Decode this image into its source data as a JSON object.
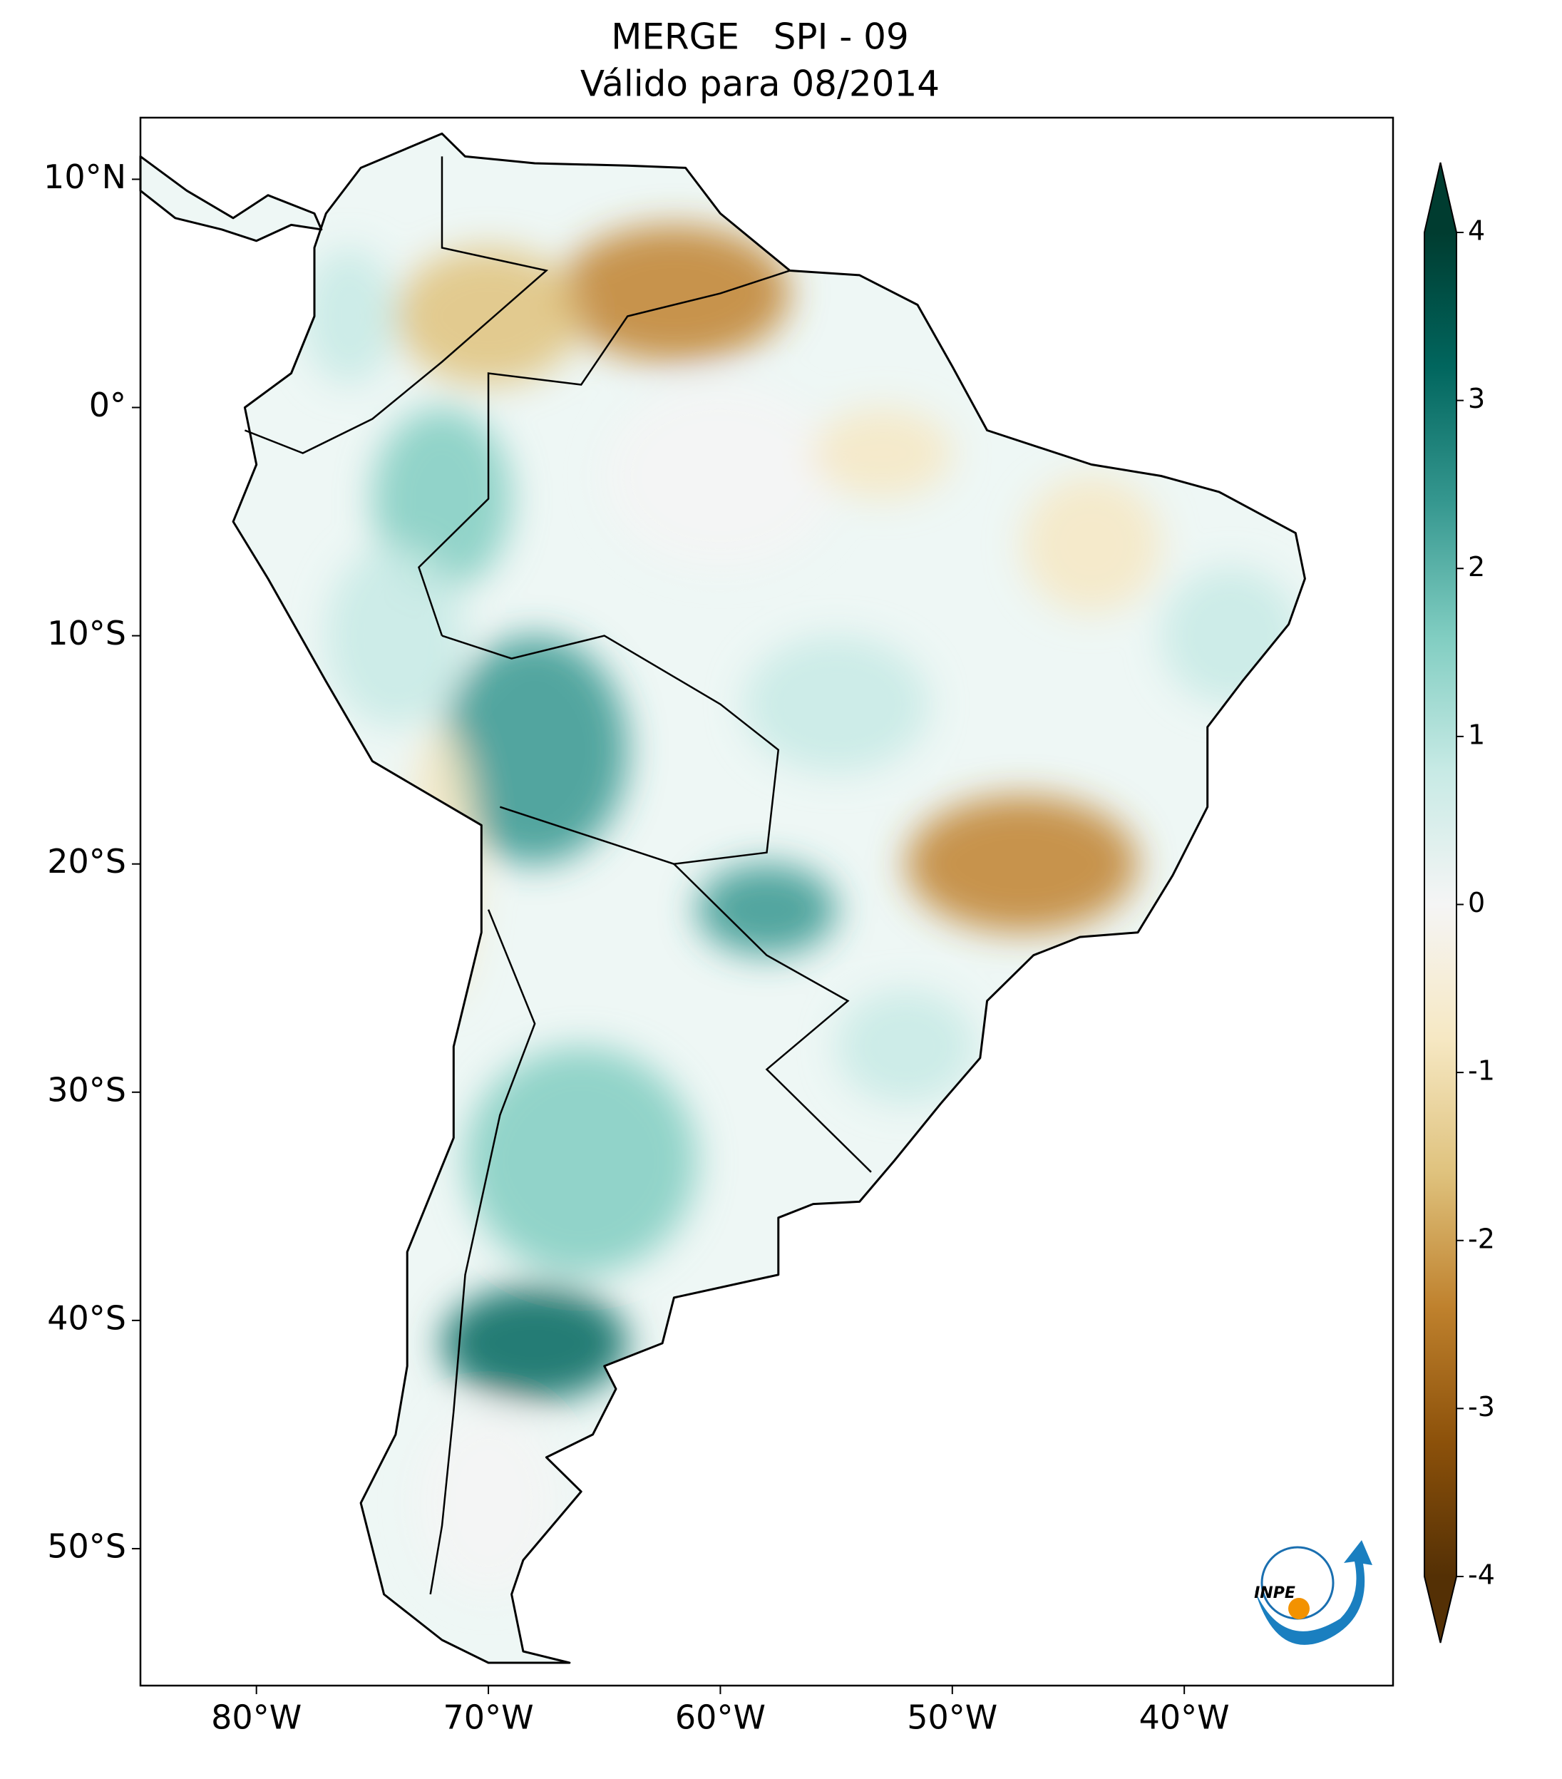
{
  "title": [
    "MERGE   SPI - 09",
    "Válido para 08/2014"
  ],
  "map": {
    "xlim": [
      -85,
      -31
    ],
    "ylim": [
      -56,
      12.7
    ],
    "xticks": [
      {
        "value": -80,
        "label": "80°W"
      },
      {
        "value": -70,
        "label": "70°W"
      },
      {
        "value": -60,
        "label": "60°W"
      },
      {
        "value": -50,
        "label": "50°W"
      },
      {
        "value": -40,
        "label": "40°W"
      }
    ],
    "yticks": [
      {
        "value": 10,
        "label": "10°N"
      },
      {
        "value": 0,
        "label": "0°"
      },
      {
        "value": -10,
        "label": "10°S"
      },
      {
        "value": -20,
        "label": "20°S"
      },
      {
        "value": -30,
        "label": "30°S"
      },
      {
        "value": -40,
        "label": "40°S"
      },
      {
        "value": -50,
        "label": "50°S"
      }
    ]
  },
  "colorbar": {
    "lim": [
      -4,
      4
    ],
    "ticks": [
      4,
      3,
      2,
      1,
      0,
      -1,
      -2,
      -3,
      -4
    ],
    "colors": [
      "#543005",
      "#8c510a",
      "#bf812d",
      "#dfc27d",
      "#f6e8c3",
      "#f5f5f5",
      "#c7eae5",
      "#80cdc1",
      "#35978f",
      "#01665e",
      "#003c30"
    ]
  },
  "logo": "INPE"
}
